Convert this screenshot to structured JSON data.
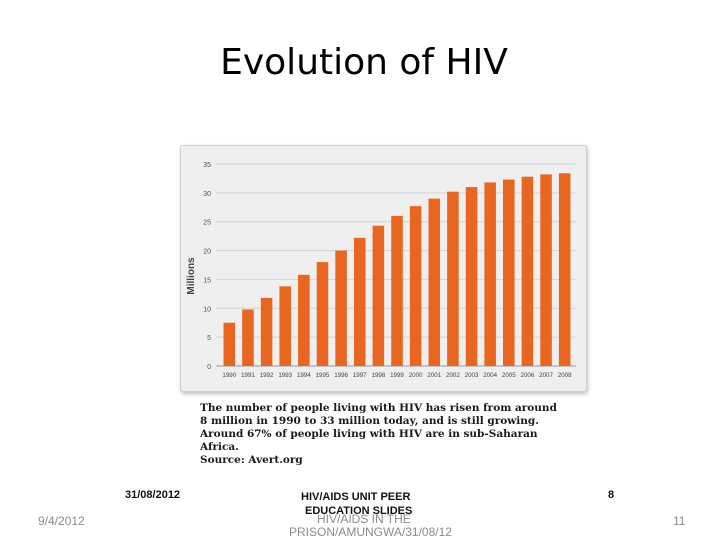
{
  "slide": {
    "title": "Evolution of HIV",
    "date": "9/4/2012",
    "page_number": "11",
    "footer_line1": "HIV/AIDS IN THE",
    "footer_line2": "PRISON/AMUNGWA/31/08/12"
  },
  "embedded_slide_footer": {
    "date": "31/08/2012",
    "title_line1": "HIV/AIDS UNIT PEER",
    "title_line2": "EDUCATION SLIDES",
    "page_number": "8"
  },
  "caption": {
    "lines": [
      "The number of people living with HIV has risen from around",
      "8 million in 1990 to 33 million today, and is still growing.",
      "Around 67% of people living with HIV are in sub-Saharan",
      "Africa.",
      "Source: Avert.org"
    ]
  },
  "chart_data": {
    "type": "bar",
    "title": "",
    "xlabel": "",
    "ylabel": "Millions",
    "ylim": [
      0,
      35
    ],
    "yticks": [
      0,
      5,
      10,
      15,
      20,
      25,
      30,
      35
    ],
    "grid": true,
    "bar_color": "#e8661f",
    "categories": [
      "1990",
      "1991",
      "1992",
      "1993",
      "1994",
      "1995",
      "1996",
      "1997",
      "1998",
      "1999",
      "2000",
      "2001",
      "2002",
      "2003",
      "2004",
      "2005",
      "2006",
      "2007",
      "2008"
    ],
    "values": [
      7.5,
      9.8,
      11.8,
      13.8,
      15.8,
      18,
      20,
      22.2,
      24.3,
      26,
      27.7,
      29,
      30.2,
      31,
      31.8,
      32.3,
      32.8,
      33.2,
      33.4
    ]
  }
}
